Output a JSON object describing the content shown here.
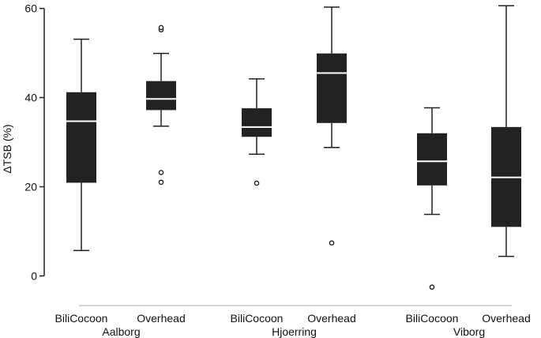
{
  "chart_data": {
    "type": "boxplot",
    "title": "",
    "xlabel": "",
    "ylabel": "ΔTSB (%)",
    "ylim": [
      -4,
      61
    ],
    "yticks": [
      0,
      20,
      40,
      60
    ],
    "grid": false,
    "legend": "none",
    "colors": {
      "box": "#222222",
      "median": "#ffffff",
      "whisker": "#222222",
      "outlier": "#222222",
      "axis": "#222222",
      "separator": "#aaaaaa"
    },
    "groups": [
      {
        "name": "Aalborg",
        "boxes": [
          {
            "label": "BiliCocoon",
            "whisker_low": 5.7,
            "q1": 20.9,
            "median": 34.7,
            "q3": 41.2,
            "whisker_high": 53.1,
            "outliers": []
          },
          {
            "label": "Overhead",
            "whisker_low": 33.6,
            "q1": 37.2,
            "median": 39.7,
            "q3": 43.7,
            "whisker_high": 49.9,
            "outliers": [
              55.2,
              55.7,
              23.2,
              21.0
            ]
          }
        ]
      },
      {
        "name": "Hjoerring",
        "boxes": [
          {
            "label": "BiliCocoon",
            "whisker_low": 27.3,
            "q1": 31.2,
            "median": 33.4,
            "q3": 37.6,
            "whisker_high": 44.2,
            "outliers": [
              20.8
            ]
          },
          {
            "label": "Overhead",
            "whisker_low": 28.8,
            "q1": 34.3,
            "median": 45.5,
            "q3": 49.9,
            "whisker_high": 60.3,
            "outliers": [
              7.4
            ]
          }
        ]
      },
      {
        "name": "Viborg",
        "boxes": [
          {
            "label": "BiliCocoon",
            "whisker_low": 13.8,
            "q1": 20.3,
            "median": 25.7,
            "q3": 32.0,
            "whisker_high": 37.7,
            "outliers": [
              -2.5
            ]
          },
          {
            "label": "Overhead",
            "whisker_low": 4.4,
            "q1": 11.0,
            "median": 22.1,
            "q3": 33.4,
            "whisker_high": 60.6,
            "outliers": []
          }
        ]
      }
    ]
  }
}
